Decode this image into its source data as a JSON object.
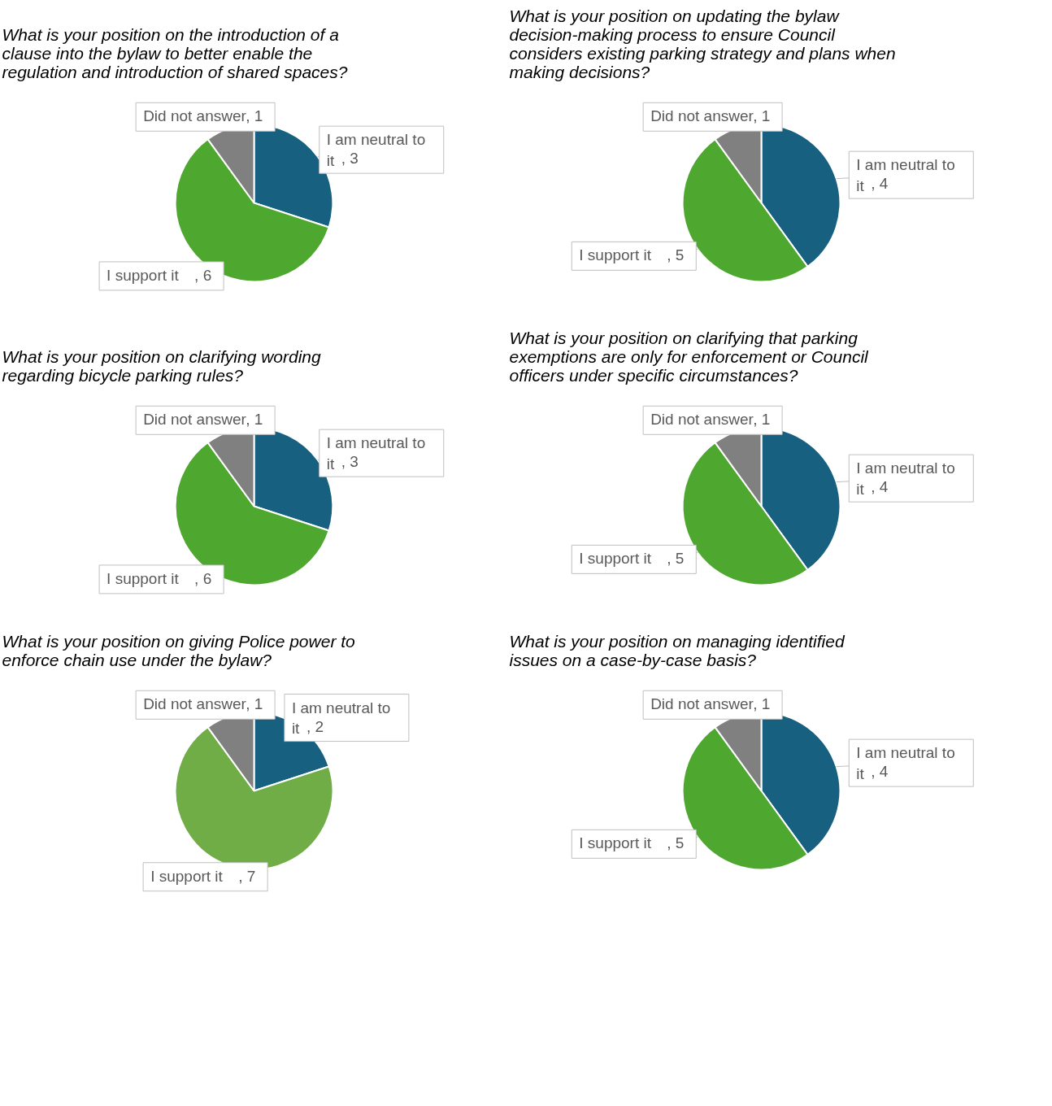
{
  "chart_data": [
    {
      "type": "pie",
      "title": "What is your position on the introduction of a clause into the bylaw to better enable the regulation and introduction of shared spaces?",
      "categories": [
        "I am neutral to it",
        "I support it",
        "Did not answer"
      ],
      "values": [
        3,
        6,
        1
      ],
      "colors": [
        "#17607f",
        "#4ea72e",
        "#808080"
      ],
      "value_labels": [
        ", 3",
        ", 6",
        ", 1"
      ]
    },
    {
      "type": "pie",
      "title": "What is your position on updating the bylaw decision-making process to ensure Council considers existing parking strategy and plans when making decisions?",
      "categories": [
        "I am neutral to it",
        "I support it",
        "Did not answer"
      ],
      "values": [
        4,
        5,
        1
      ],
      "colors": [
        "#17607f",
        "#4ea72e",
        "#808080"
      ],
      "value_labels": [
        ", 4",
        ", 5",
        ", 1"
      ]
    },
    {
      "type": "pie",
      "title": "What is your position on clarifying wording regarding bicycle parking rules?",
      "categories": [
        "I am neutral to it",
        "I support it",
        "Did not answer"
      ],
      "values": [
        3,
        6,
        1
      ],
      "colors": [
        "#17607f",
        "#4ea72e",
        "#808080"
      ],
      "value_labels": [
        ", 3",
        ", 6",
        ", 1"
      ]
    },
    {
      "type": "pie",
      "title": "What is your position on clarifying that parking exemptions are only for enforcement or Council officers under specific circumstances?",
      "categories": [
        "I am neutral to it",
        "I support it",
        "Did not answer"
      ],
      "values": [
        4,
        5,
        1
      ],
      "colors": [
        "#17607f",
        "#4ea72e",
        "#808080"
      ],
      "value_labels": [
        ", 4",
        ", 5",
        ", 1"
      ]
    },
    {
      "type": "pie",
      "title": "What is your position on giving Police power to enforce chain use under the bylaw?",
      "categories": [
        "I am neutral to it",
        "I support it",
        "Did not answer"
      ],
      "values": [
        2,
        7,
        1
      ],
      "colors": [
        "#17607f",
        "#70ad47",
        "#808080"
      ],
      "value_labels": [
        ", 2",
        ", 7",
        ", 1"
      ]
    },
    {
      "type": "pie",
      "title": "What is your position on managing identified issues on a case-by-case basis?",
      "categories": [
        "I am neutral to it",
        "I support it",
        "Did not answer"
      ],
      "values": [
        4,
        5,
        1
      ],
      "colors": [
        "#17607f",
        "#4ea72e",
        "#808080"
      ],
      "value_labels": [
        ", 4",
        ", 5",
        ", 1"
      ]
    }
  ]
}
